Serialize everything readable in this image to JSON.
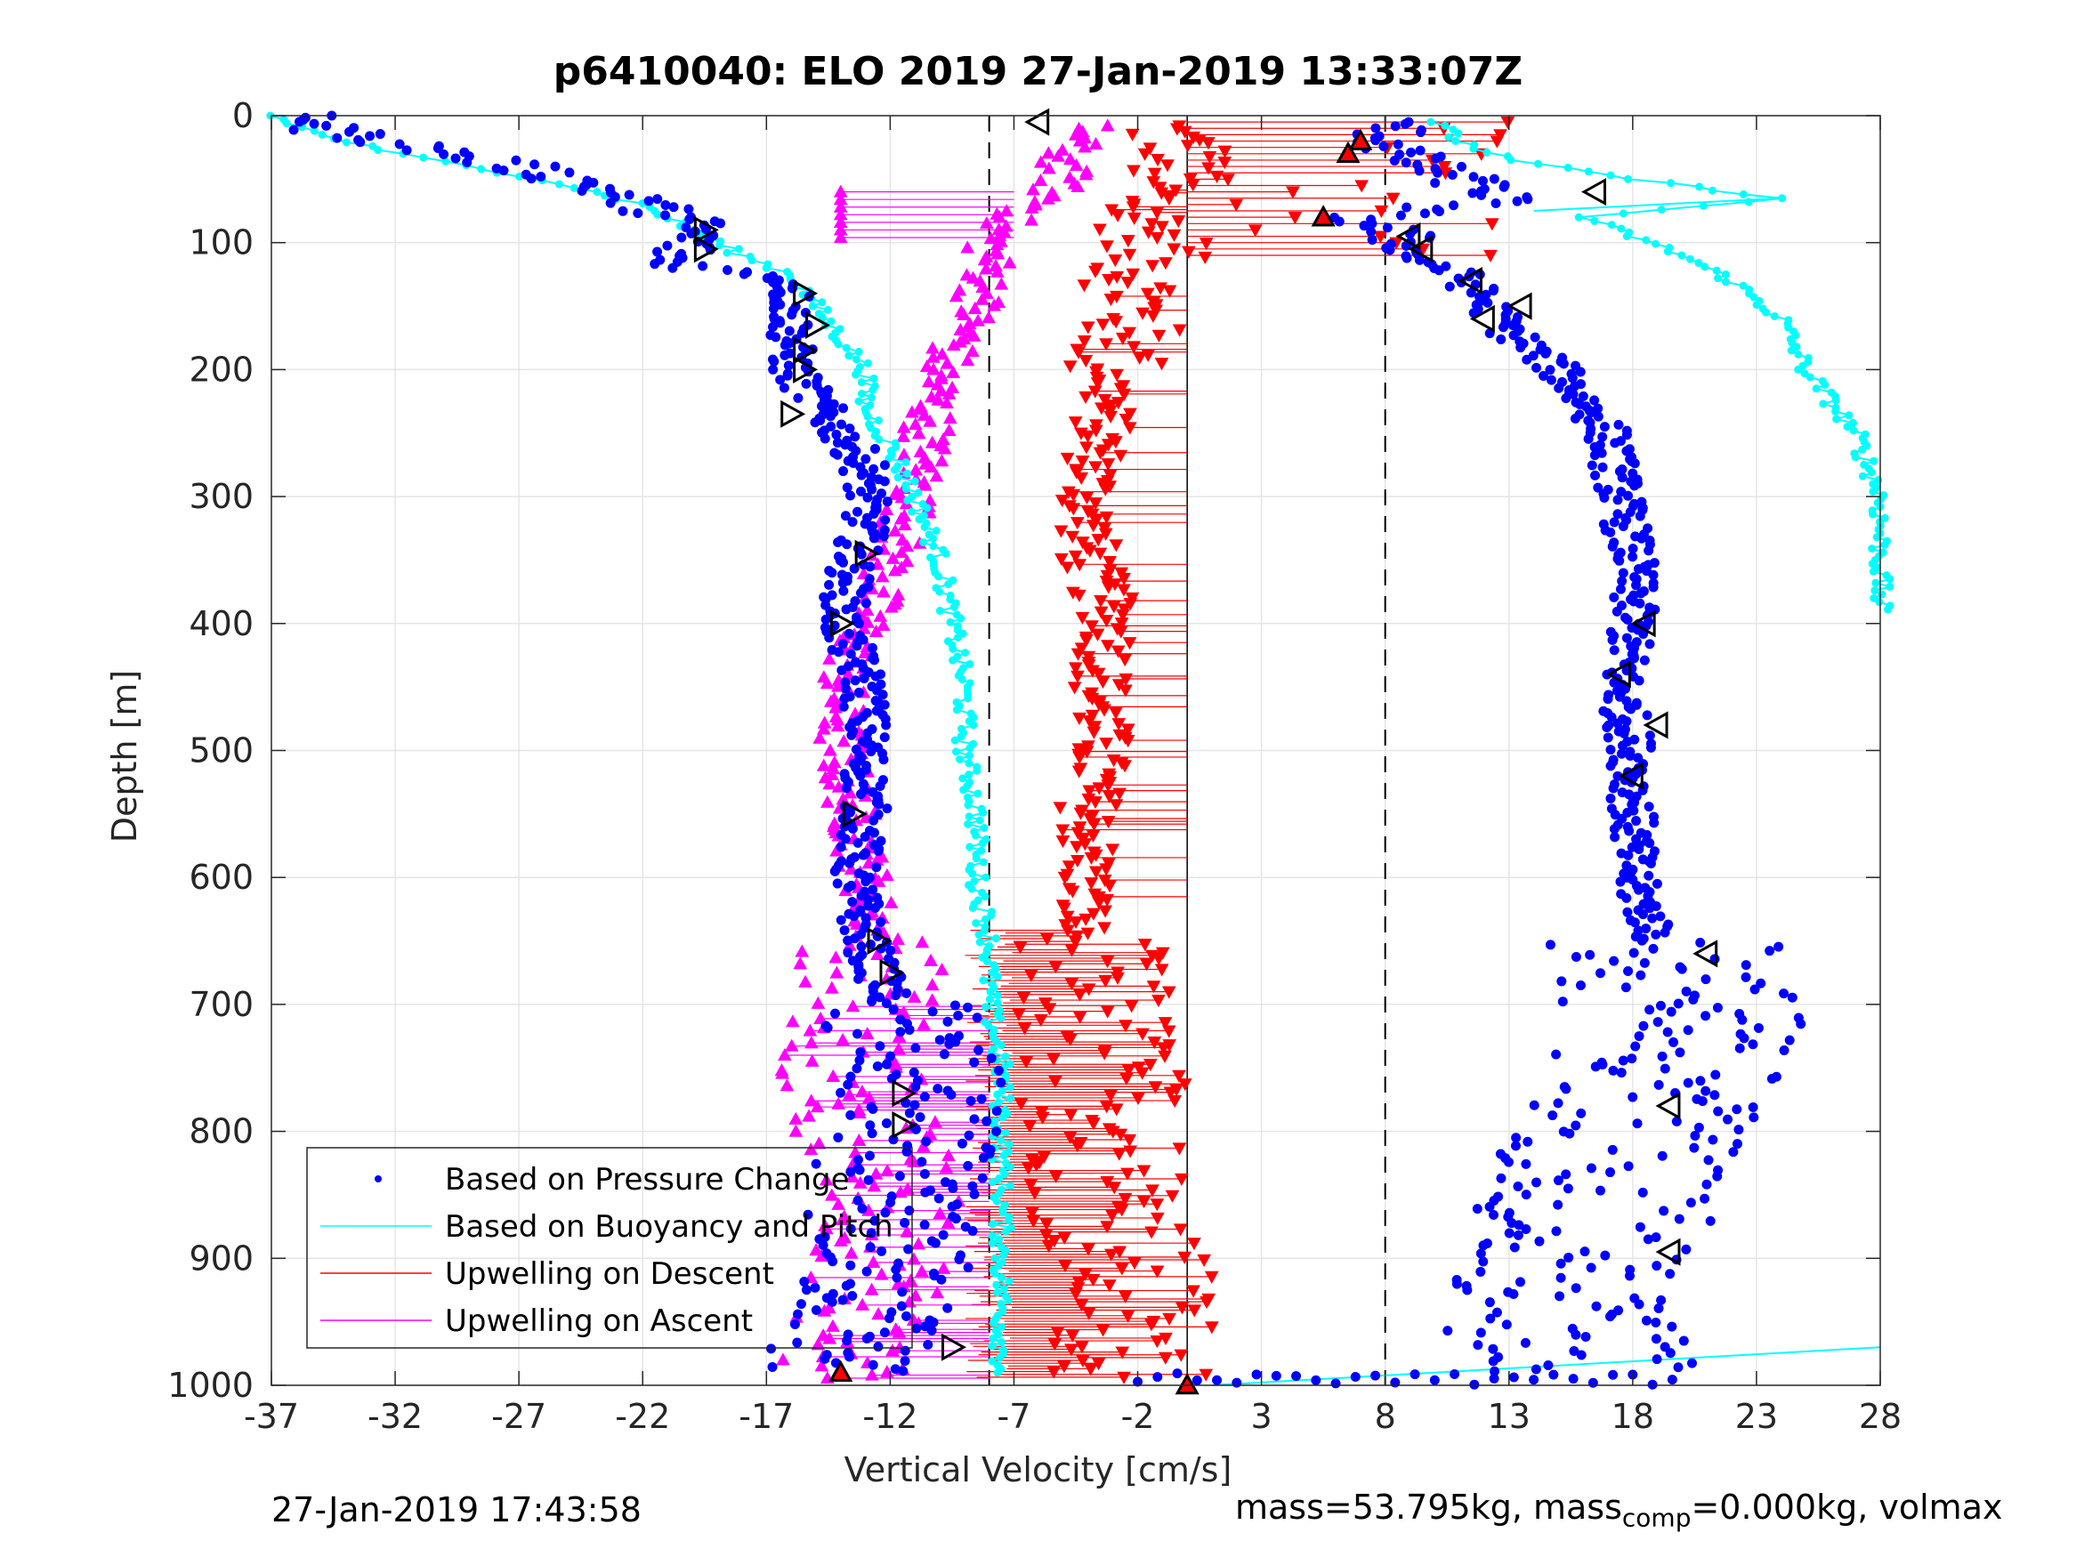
{
  "chart_data": {
    "type": "scatter",
    "title": "p6410040: ELO 2019 27-Jan-2019 13:33:07Z",
    "xlabel": "Vertical Velocity [cm/s]",
    "ylabel": "Depth [m]",
    "xlim": [
      -37,
      28
    ],
    "ylim": [
      0,
      1000
    ],
    "y_reversed": true,
    "xticks": [
      "-37",
      "-32",
      "-27",
      "-22",
      "-17",
      "-12",
      "-7",
      "-2",
      "3",
      "8",
      "13",
      "18",
      "23",
      "28"
    ],
    "yticks": [
      "0",
      "100",
      "200",
      "300",
      "400",
      "500",
      "600",
      "700",
      "800",
      "900",
      "1000"
    ],
    "grid": true,
    "legend_position": "bottom-left",
    "reference_lines": {
      "solid": [
        0
      ],
      "dashed": [
        -8,
        8
      ]
    },
    "series": [
      {
        "name": "Based on Pressure Change",
        "color": "#0000ff",
        "marker": "dot",
        "descent": {
          "depth": [
            0,
            10,
            25,
            40,
            55,
            70,
            85,
            100,
            115,
            130,
            150,
            175,
            200,
            225,
            250,
            275,
            300,
            325,
            350,
            400,
            450,
            500,
            550,
            600,
            650,
            700,
            750,
            800,
            850,
            900,
            950,
            990
          ],
          "velocity": [
            -35,
            -35,
            -31,
            -27,
            -24,
            -22,
            -20,
            -20,
            -21,
            -16,
            -16,
            -16,
            -16,
            -15,
            -14,
            -13,
            -13,
            -13,
            -13.5,
            -14,
            -13,
            -13,
            -13,
            -13.5,
            -13,
            -12,
            -11,
            -11,
            -12,
            -12,
            -13,
            -14
          ]
        },
        "ascent": {
          "depth": [
            990,
            950,
            900,
            850,
            800,
            760,
            720,
            680,
            650,
            600,
            550,
            500,
            450,
            400,
            350,
            300,
            250,
            200,
            170,
            145,
            125,
            110,
            95,
            80,
            65,
            50,
            35,
            20,
            5
          ],
          "velocity": [
            16,
            15,
            15,
            17,
            18,
            19.5,
            20,
            20,
            19,
            18,
            18,
            18,
            17.5,
            18,
            18,
            17.5,
            17,
            15,
            13,
            12,
            11,
            9,
            8.5,
            7,
            13,
            11,
            9,
            8,
            8.5
          ]
        }
      },
      {
        "name": "Based on Buoyancy and Pitch",
        "color": "#00ffff",
        "marker": "circle-line",
        "descent": {
          "depth": [
            0,
            15,
            30,
            50,
            70,
            90,
            110,
            125,
            150,
            175,
            200,
            230,
            260,
            300,
            350,
            400,
            450,
            500,
            550,
            600,
            650,
            700,
            750,
            800,
            850,
            900,
            950,
            990
          ],
          "velocity": [
            -37,
            -35,
            -32,
            -26,
            -22,
            -20,
            -18,
            -16,
            -15,
            -14,
            -13,
            -13,
            -12,
            -11,
            -10,
            -9.5,
            -9,
            -9,
            -8.5,
            -8.5,
            -8,
            -8,
            -7.5,
            -7.5,
            -7.5,
            -7.5,
            -7.5,
            -7.5
          ]
        },
        "ascent": {
          "depth": [
            390,
            350,
            300,
            250,
            200,
            160,
            130,
            110,
            95,
            80,
            65,
            50,
            35,
            20,
            5
          ],
          "velocity": [
            28,
            28,
            28,
            27,
            25,
            24,
            22,
            20,
            18,
            16,
            24,
            18,
            13,
            11,
            10
          ]
        }
      },
      {
        "name": "Upwelling on Descent",
        "color": "#ff0000",
        "marker": "triangle-down",
        "depth": [
          10,
          30,
          50,
          75,
          100,
          125,
          150,
          175,
          200,
          250,
          300,
          350,
          400,
          450,
          500,
          550,
          600,
          650,
          700,
          750,
          800,
          850,
          900,
          950,
          990
        ],
        "velocity": [
          -1,
          0,
          -1,
          -2,
          -1,
          -2,
          -2,
          -2.5,
          -3,
          -3.5,
          -4,
          -4,
          -3,
          -3.5,
          -3.5,
          -4,
          -4,
          -4.5,
          -4,
          -3.5,
          -3,
          -3,
          -2.5,
          -2,
          -2
        ]
      },
      {
        "name": "Upwelling on Ascent",
        "color": "#ff00ff",
        "marker": "triangle-up",
        "depth": [
          990,
          950,
          900,
          850,
          800,
          750,
          700,
          650,
          600,
          550,
          500,
          450,
          400,
          350,
          300,
          250,
          200,
          170,
          150,
          125,
          100,
          85,
          70,
          50,
          30,
          10
        ],
        "velocity": [
          -14,
          -13,
          -12,
          -12,
          -13,
          -13.5,
          -13,
          -12.5,
          -13,
          -13.5,
          -14,
          -14,
          -13,
          -12,
          -11,
          -10.5,
          -10,
          -9,
          -8.5,
          -8,
          -8,
          -7.5,
          -6,
          -5,
          -5,
          -4
        ]
      }
    ],
    "markers": {
      "descent": {
        "depth": [
          90,
          105,
          140,
          165,
          185,
          200,
          235,
          345,
          400,
          550,
          650,
          675,
          770,
          795,
          970
        ],
        "velocity": [
          -19.5,
          -19.5,
          -15.5,
          -15,
          -15.5,
          -15.5,
          -16,
          -13,
          -14,
          -13.5,
          -12.5,
          -12,
          -11.5,
          -11.5,
          -9.5
        ]
      },
      "ascent": {
        "depth": [
          60,
          95,
          105,
          130,
          150,
          160,
          400,
          440,
          480,
          520,
          660,
          780,
          895,
          5
        ],
        "velocity": [
          16.5,
          9,
          9.5,
          11.5,
          13.5,
          12,
          18.5,
          17.5,
          19,
          18,
          21,
          19.5,
          19.5,
          -6
        ]
      },
      "red_triangles": {
        "depth": [
          30,
          20,
          80,
          990,
          1000
        ],
        "velocity": [
          6.5,
          7,
          5.5,
          -14,
          0
        ]
      }
    }
  },
  "footer": {
    "timestamp": "27-Jan-2019 17:43:58",
    "mass_prefix": "mass=53.795kg, mass",
    "mass_sub": "comp",
    "mass_suffix": "=0.000kg, volmax"
  }
}
